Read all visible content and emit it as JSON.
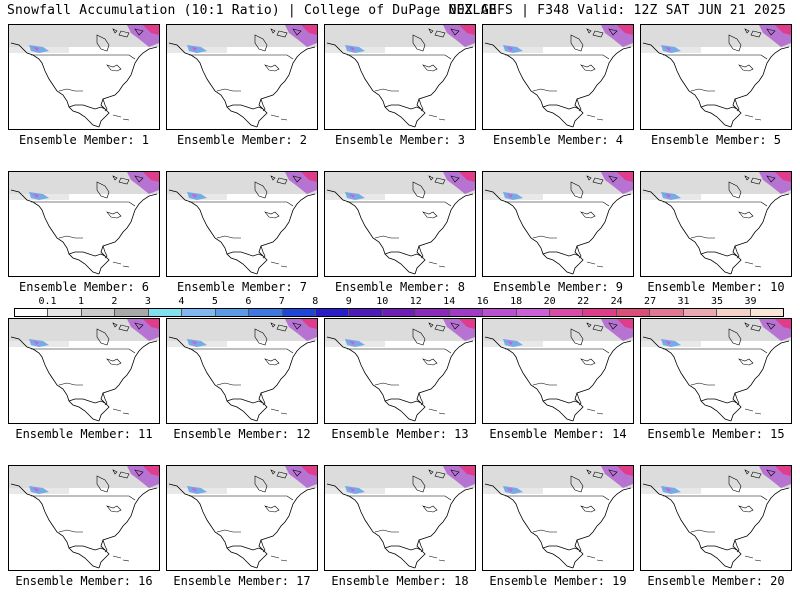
{
  "header": {
    "left_title": "Snowfall Accumulation (10:1 Ratio) | College of DuPage NEXLAB",
    "right_title": "00Z GEFS | F348 Valid: 12Z SAT JUN 21 2025"
  },
  "panels": [
    {
      "label": "Ensemble Member: 1"
    },
    {
      "label": "Ensemble Member: 2"
    },
    {
      "label": "Ensemble Member: 3"
    },
    {
      "label": "Ensemble Member: 4"
    },
    {
      "label": "Ensemble Member: 5"
    },
    {
      "label": "Ensemble Member: 6"
    },
    {
      "label": "Ensemble Member: 7"
    },
    {
      "label": "Ensemble Member: 8"
    },
    {
      "label": "Ensemble Member: 9"
    },
    {
      "label": "Ensemble Member: 10"
    },
    {
      "label": "Ensemble Member: 11"
    },
    {
      "label": "Ensemble Member: 12"
    },
    {
      "label": "Ensemble Member: 13"
    },
    {
      "label": "Ensemble Member: 14"
    },
    {
      "label": "Ensemble Member: 15"
    },
    {
      "label": "Ensemble Member: 16"
    },
    {
      "label": "Ensemble Member: 17"
    },
    {
      "label": "Ensemble Member: 18"
    },
    {
      "label": "Ensemble Member: 19"
    },
    {
      "label": "Ensemble Member: 20"
    }
  ],
  "colorbar": {
    "labels": [
      "0.1",
      "1",
      "2",
      "3",
      "4",
      "5",
      "6",
      "7",
      "8",
      "9",
      "10",
      "12",
      "14",
      "16",
      "18",
      "20",
      "22",
      "24",
      "27",
      "31",
      "35",
      "39"
    ],
    "colors": [
      "#ffffff",
      "#e6e6e6",
      "#cccccc",
      "#a8a8a8",
      "#7fe0ee",
      "#7fb8f0",
      "#5a9be6",
      "#3c78e0",
      "#1e46d8",
      "#2a1ec8",
      "#4e1ab8",
      "#6e20b4",
      "#8a2cb8",
      "#a03cc4",
      "#b850d0",
      "#cc60d8",
      "#d84ca8",
      "#e03c8c",
      "#d85078",
      "#e07894",
      "#eaa8b0",
      "#f4d2c8",
      "#f8e6d8"
    ]
  }
}
